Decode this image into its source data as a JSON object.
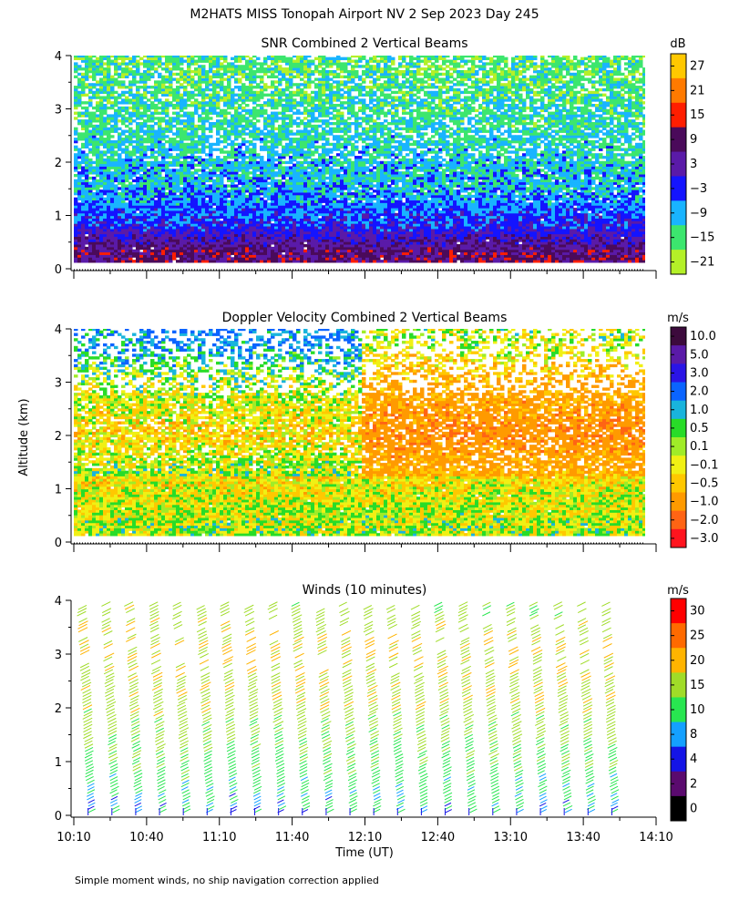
{
  "title": "M2HATS MISS Tonopah Airport NV   2 Sep 2023 Day 245",
  "footer_note": "Simple moment winds, no ship navigation correction applied",
  "y_axis_label": "Altitude (km)",
  "x_axis_label": "Time (UT)",
  "chart_data": [
    {
      "type": "heatmap",
      "title": "SNR Combined 2 Vertical Beams",
      "units": "dB",
      "xlabel": "Time (UT)",
      "ylabel": "Altitude (km)",
      "x_ticks": [
        "10:10",
        "10:40",
        "11:10",
        "11:40",
        "12:10",
        "12:40",
        "13:10",
        "13:40",
        "14:10"
      ],
      "x_range_minutes": [
        610,
        850
      ],
      "y_ticks": [
        0,
        1,
        2,
        3,
        4
      ],
      "ylim": [
        0,
        4
      ],
      "colorbar_labels": [
        "27",
        "21",
        "15",
        "9",
        "3",
        "−3",
        "−9",
        "−15",
        "−21"
      ],
      "colorbar_colors": [
        "#ffc800",
        "#ff7a00",
        "#ff1e00",
        "#4a0a5a",
        "#5a1aa8",
        "#1414ff",
        "#19b4ff",
        "#3ce66e",
        "#b4f028"
      ],
      "approx_profile": [
        {
          "altitude_km": 0.3,
          "snr_db": 5
        },
        {
          "altitude_km": 0.8,
          "snr_db": -6
        },
        {
          "altitude_km": 1.5,
          "snr_db": -12
        },
        {
          "altitude_km": 2.5,
          "snr_db": -15
        },
        {
          "altitude_km": 3.5,
          "snr_db": -18
        }
      ]
    },
    {
      "type": "heatmap",
      "title": "Doppler Velocity Combined 2 Vertical Beams",
      "units": "m/s",
      "xlabel": "Time (UT)",
      "ylabel": "Altitude (km)",
      "x_ticks": [
        "10:10",
        "10:40",
        "11:10",
        "11:40",
        "12:10",
        "12:40",
        "13:10",
        "13:40",
        "14:10"
      ],
      "x_range_minutes": [
        610,
        850
      ],
      "y_ticks": [
        0,
        1,
        2,
        3,
        4
      ],
      "ylim": [
        0,
        4
      ],
      "colorbar_labels": [
        "10.0",
        "5.0",
        "3.0",
        "2.0",
        "1.0",
        "0.5",
        "0.1",
        "−0.1",
        "−0.5",
        "−1.0",
        "−2.0",
        "−3.0"
      ],
      "colorbar_colors": [
        "#3c0a3c",
        "#5a1aa8",
        "#2a14e6",
        "#0a64ff",
        "#19b4dc",
        "#28dc28",
        "#a0ec28",
        "#f0f014",
        "#ffc800",
        "#ff9a00",
        "#ff6414",
        "#ff141e"
      ],
      "approx_profile": [
        {
          "altitude_km": 0.3,
          "velocity_ms": -0.1
        },
        {
          "altitude_km": 1.0,
          "velocity_ms": -0.4
        },
        {
          "altitude_km": 2.0,
          "velocity_ms": -1.2
        },
        {
          "altitude_km": 3.0,
          "velocity_ms": -0.6
        },
        {
          "altitude_km": 3.7,
          "velocity_ms": 0.4
        }
      ]
    },
    {
      "type": "scatter",
      "subtype": "wind_barbs",
      "title": "Winds (10 minutes)",
      "units": "m/s",
      "xlabel": "Time (UT)",
      "ylabel": "Altitude (km)",
      "x_ticks": [
        "10:10",
        "10:40",
        "11:10",
        "11:40",
        "12:10",
        "12:40",
        "13:10",
        "13:40",
        "14:10"
      ],
      "x_range_minutes": [
        610,
        850
      ],
      "y_ticks": [
        0,
        1,
        2,
        3,
        4
      ],
      "ylim": [
        0,
        4
      ],
      "colorbar_labels": [
        "30",
        "25",
        "20",
        "15",
        "10",
        "8",
        "4",
        "2",
        "0"
      ],
      "colorbar_colors": [
        "#ff0000",
        "#ff6a00",
        "#ffb400",
        "#a0dc28",
        "#28e650",
        "#14a0ff",
        "#1414e6",
        "#5a0a6e",
        "#000000"
      ],
      "profile_times_minutes": [
        616,
        626,
        636,
        646,
        656,
        666,
        676,
        686,
        696,
        706,
        716,
        726,
        736,
        746,
        756,
        766,
        776,
        786,
        796,
        806,
        816,
        826,
        836
      ],
      "approx_profile": [
        {
          "altitude_km": 0.2,
          "speed_ms": 10
        },
        {
          "altitude_km": 1.0,
          "speed_ms": 14
        },
        {
          "altitude_km": 2.0,
          "speed_ms": 18
        },
        {
          "altitude_km": 3.0,
          "speed_ms": 20
        },
        {
          "altitude_km": 3.9,
          "speed_ms": 17
        }
      ]
    }
  ]
}
